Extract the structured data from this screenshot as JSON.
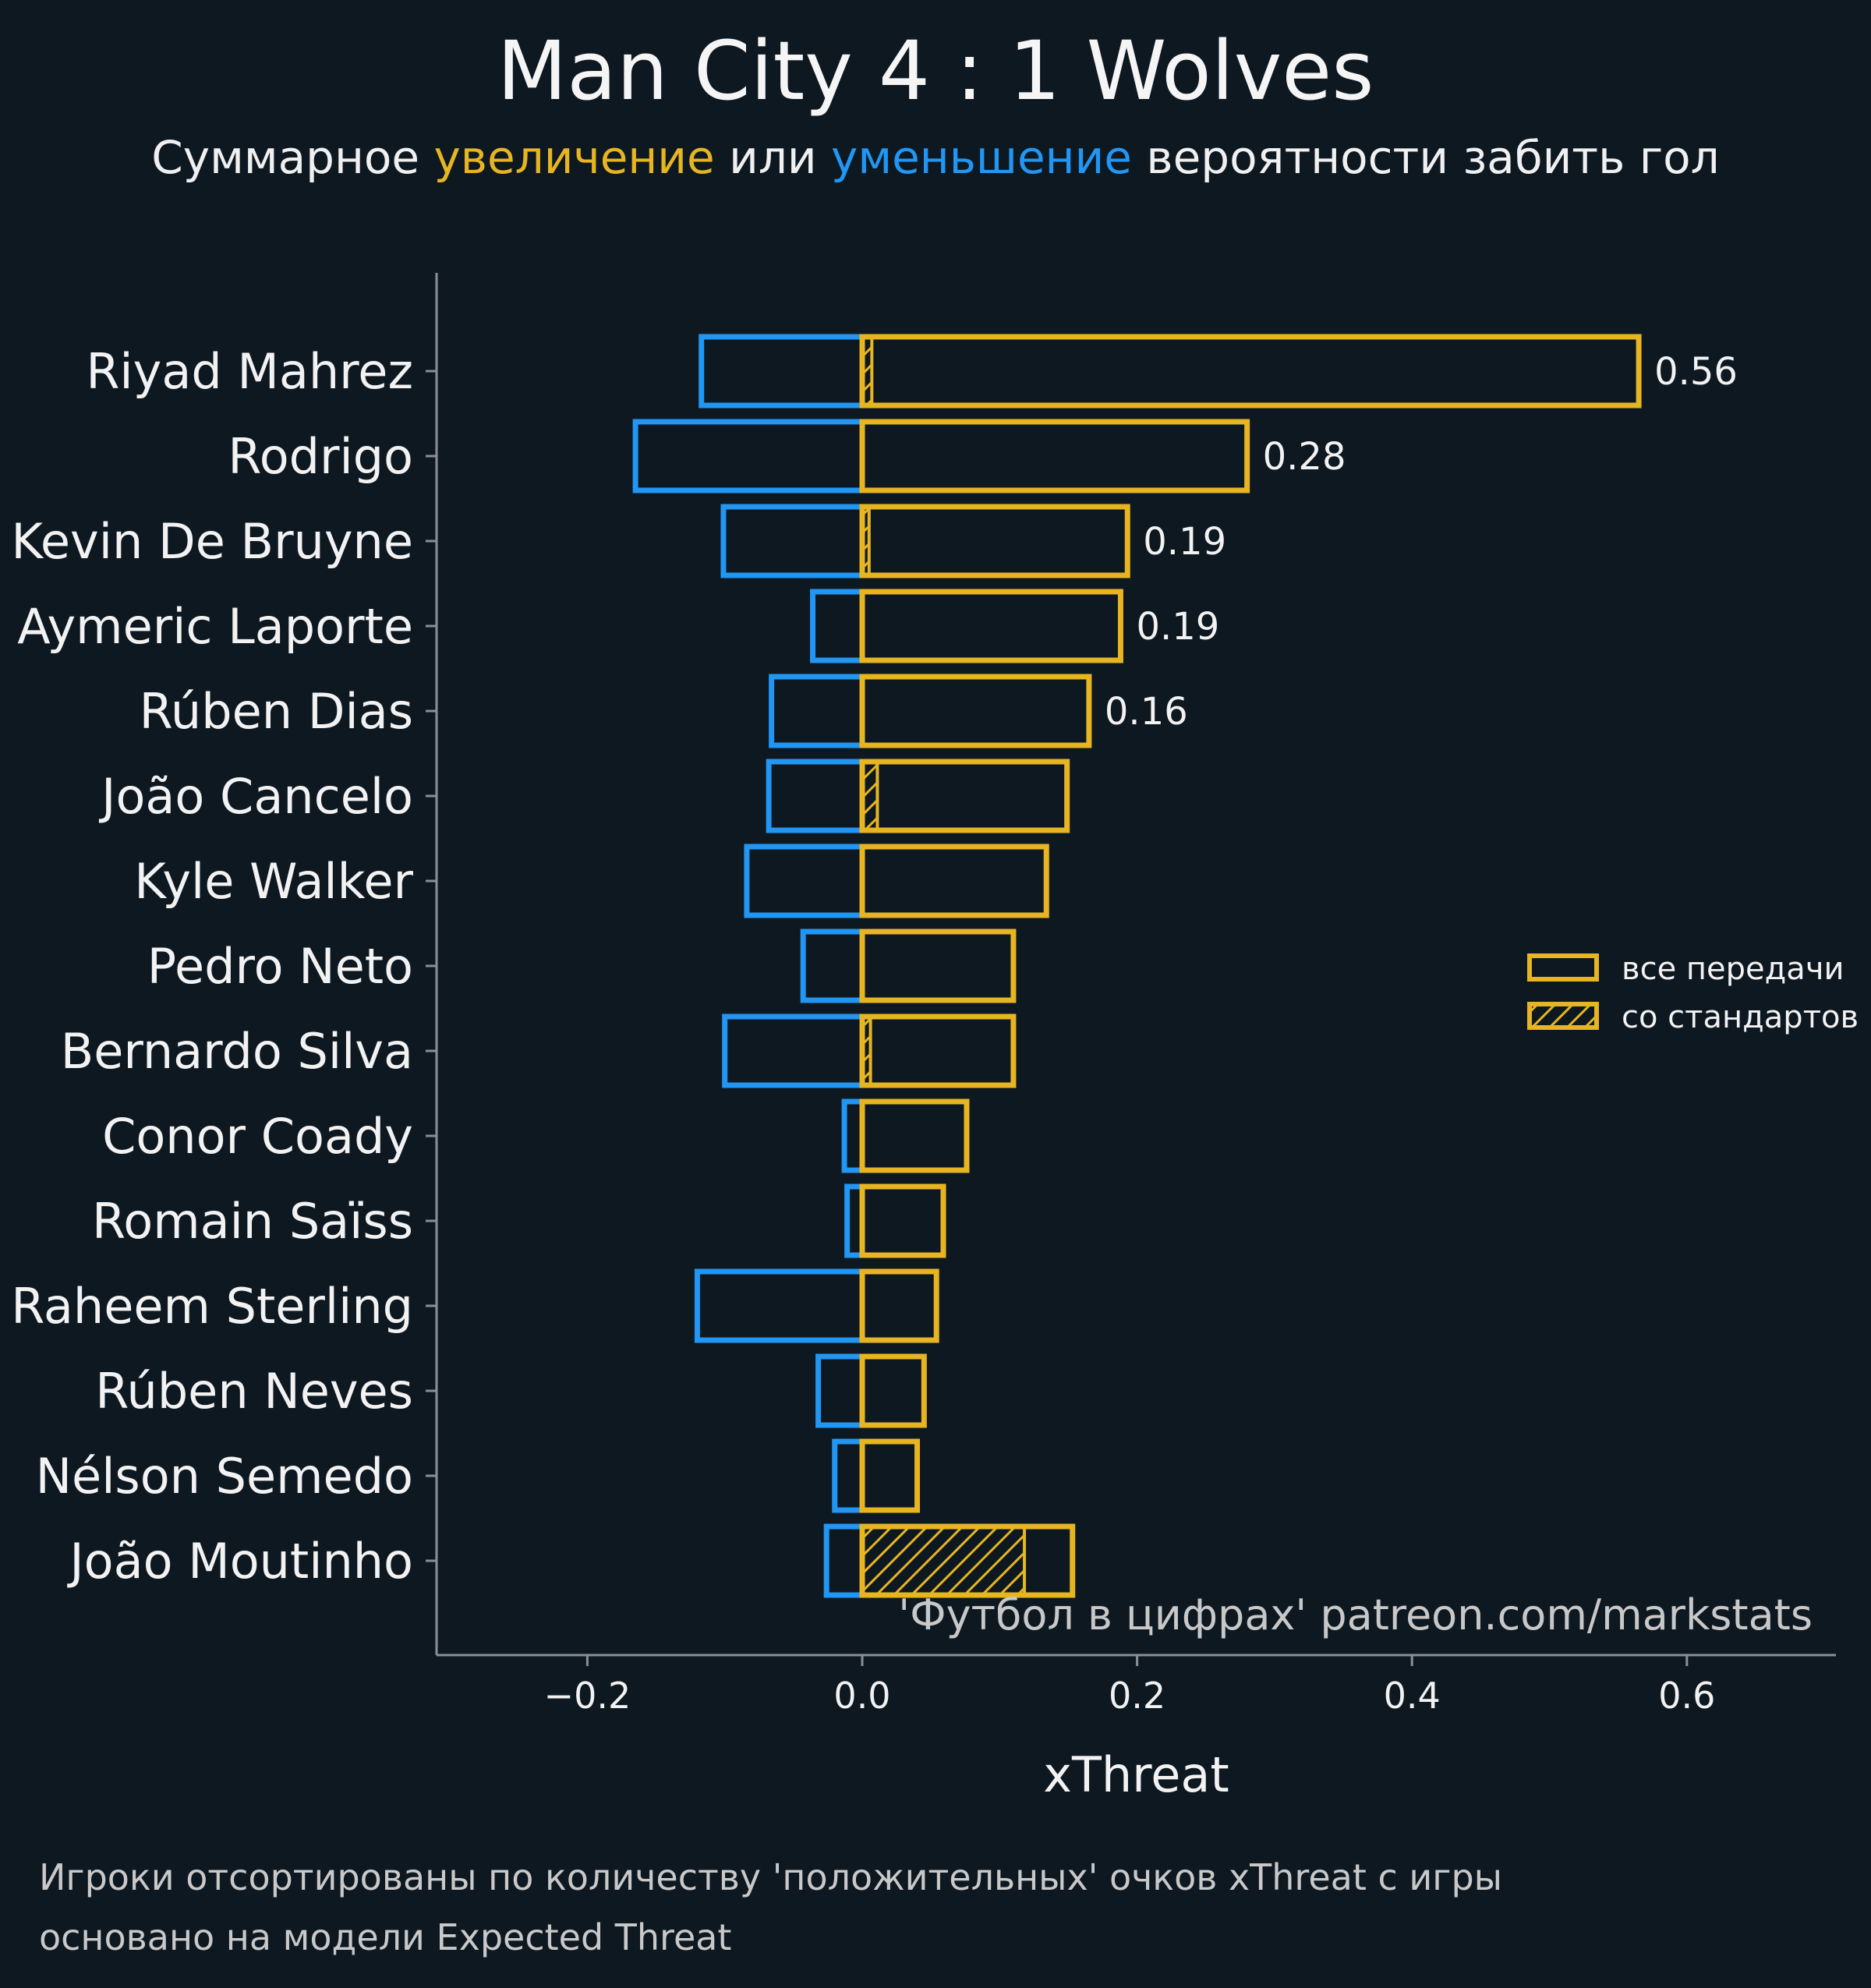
{
  "title": "Man City 4 : 1 Wolves",
  "subtitle": {
    "part1": "Суммарное",
    "positive_word": "увеличение",
    "part2": "или",
    "negative_word": "уменьшение",
    "part3": "вероятности забить гол"
  },
  "watermark": "'Футбол в цифрах' patreon.com/markstats",
  "notes": [
    "Игроки отсортированы по количеству 'положительных' очков xThreat с игры",
    "основано на модели Expected Threat"
  ],
  "colors": {
    "background": "#0e1821",
    "positive": "#e6b521",
    "negative": "#2196f3",
    "axis": "#8a9099",
    "text": "#f2f2f2"
  },
  "chart_data": {
    "type": "bar",
    "orientation": "horizontal",
    "xlabel": "xThreat",
    "xlim": [
      -0.31,
      0.71
    ],
    "xticks": [
      -0.2,
      0.0,
      0.2,
      0.4,
      0.6
    ],
    "xtick_labels": [
      "−0.2",
      "0.0",
      "0.2",
      "0.4",
      "0.6"
    ],
    "grid": false,
    "legend_position": "right",
    "legend": [
      {
        "label": "все передачи",
        "style": "outline"
      },
      {
        "label": "со стандартов",
        "style": "hatched"
      }
    ],
    "categories": [
      "Riyad Mahrez",
      "Rodrigo",
      "Kevin De Bruyne",
      "Aymeric Laporte",
      "Rúben Dias",
      "João Cancelo",
      "Kyle Walker",
      "Pedro Neto",
      "Bernardo Silva",
      "Conor Coady",
      "Romain Saïss",
      "Raheem Sterling",
      "Rúben Neves",
      "Nélson Semedo",
      "João Moutinho"
    ],
    "series": [
      {
        "name": "positive",
        "values": [
          0.565,
          0.28,
          0.193,
          0.188,
          0.165,
          0.149,
          0.134,
          0.11,
          0.11,
          0.076,
          0.059,
          0.054,
          0.045,
          0.04,
          0.153
        ]
      },
      {
        "name": "negative",
        "values": [
          -0.117,
          -0.165,
          -0.101,
          -0.036,
          -0.066,
          -0.068,
          -0.084,
          -0.043,
          -0.1,
          -0.013,
          -0.011,
          -0.12,
          -0.032,
          -0.02,
          -0.026
        ]
      },
      {
        "name": "set_pieces",
        "values": [
          0.007,
          0,
          0.005,
          0,
          0,
          0.011,
          0,
          0,
          0.006,
          0,
          0,
          0,
          0,
          0,
          0.118
        ]
      }
    ],
    "data_labels": [
      "0.56",
      "0.28",
      "0.19",
      "0.19",
      "0.16",
      "",
      "",
      "",
      "",
      "",
      "",
      "",
      "",
      "",
      ""
    ]
  }
}
